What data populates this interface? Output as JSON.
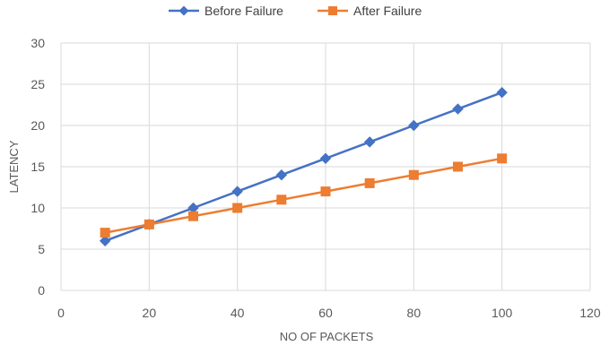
{
  "chart_data": {
    "type": "line",
    "title": "",
    "xlabel": "NO OF PACKETS",
    "ylabel": "LATENCY",
    "xlim": [
      0,
      120
    ],
    "ylim": [
      0,
      30
    ],
    "x_ticks": [
      0,
      20,
      40,
      60,
      80,
      100,
      120
    ],
    "y_ticks": [
      0,
      5,
      10,
      15,
      20,
      25,
      30
    ],
    "grid": true,
    "legend_position": "top",
    "x": [
      10,
      20,
      30,
      40,
      50,
      60,
      70,
      80,
      90,
      100
    ],
    "series": [
      {
        "name": "Before Failure",
        "color": "#4472C4",
        "marker": "diamond",
        "values": [
          6,
          8,
          10,
          12,
          14,
          16,
          18,
          20,
          22,
          24
        ]
      },
      {
        "name": "After Failure",
        "color": "#ED7D31",
        "marker": "square",
        "values": [
          7,
          8,
          9,
          10,
          11,
          12,
          13,
          14,
          15,
          16
        ]
      }
    ]
  },
  "colors": {
    "grid": "#D9D9D9",
    "axis_text": "#595959"
  }
}
